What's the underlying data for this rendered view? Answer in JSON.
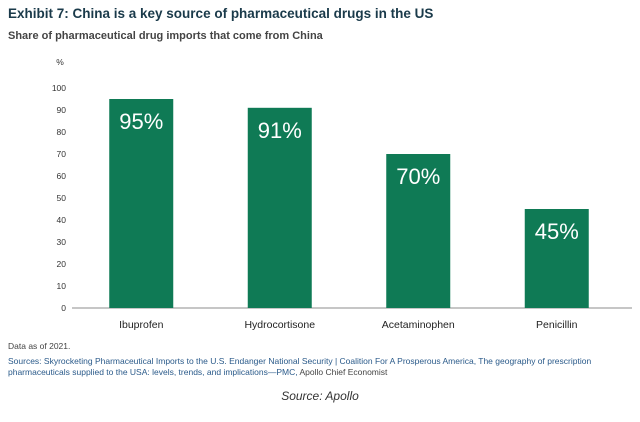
{
  "title": "Exhibit 7: China is a key source of pharmaceutical drugs in the US",
  "subtitle": "Share of pharmaceutical drug imports that come from China",
  "note": "Data as of 2021.",
  "sources_label": "Sources:",
  "sources_links": "Skyrocketing Pharmaceutical Imports to the U.S. Endanger National Security | Coalition For A Prosperous America, The geography of prescription pharmaceuticals supplied to the USA: levels, trends, and implications—PMC,",
  "sources_extra": "Apollo Chief Economist",
  "caption": "Source: Apollo",
  "colors": {
    "bar": "#0f7a55",
    "bar_label": "#ffffff",
    "axis": "#666666"
  },
  "chart_data": {
    "type": "bar",
    "categories": [
      "Ibuprofen",
      "Hydrocortisone",
      "Acetaminophen",
      "Penicillin"
    ],
    "values": [
      95,
      91,
      70,
      45
    ],
    "value_labels": [
      "95%",
      "91%",
      "70%",
      "45%"
    ],
    "title": "",
    "ylabel": "%",
    "xlabel": "",
    "ylim": [
      0,
      100
    ],
    "yticks": [
      0,
      10,
      20,
      30,
      40,
      50,
      60,
      70,
      80,
      90,
      100
    ],
    "grid": false,
    "legend": "none"
  }
}
